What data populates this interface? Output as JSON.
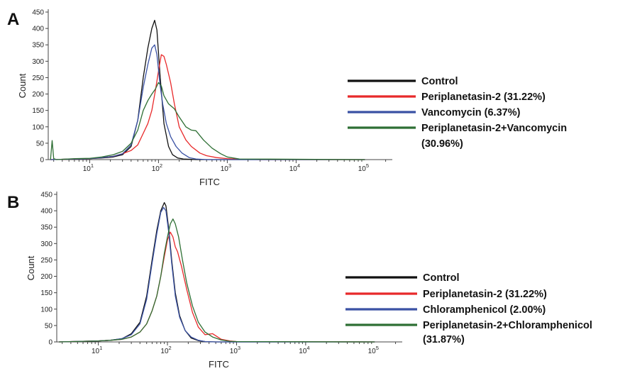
{
  "chart_data": [
    {
      "panel_label": "A",
      "type": "line",
      "xlabel": "FITC",
      "ylabel": "Count",
      "x_scale": "log",
      "xlim": [
        2.5,
        250000
      ],
      "ylim": [
        0,
        450
      ],
      "y_ticks": [
        0,
        50,
        100,
        150,
        200,
        250,
        300,
        350,
        400,
        450
      ],
      "x_ticks": [
        {
          "value": 10,
          "base": "10",
          "exp": "1"
        },
        {
          "value": 100,
          "base": "10",
          "exp": "2"
        },
        {
          "value": 1000,
          "base": "10",
          "exp": "3"
        },
        {
          "value": 10000,
          "base": "10",
          "exp": "4"
        },
        {
          "value": 100000,
          "base": "10",
          "exp": "5"
        }
      ],
      "series": [
        {
          "name": "Control",
          "color": "#111111",
          "x": [
            2.7,
            6,
            10,
            15,
            22,
            30,
            40,
            50,
            60,
            70,
            80,
            88,
            95,
            105,
            120,
            140,
            160,
            190,
            230,
            280,
            350,
            500,
            1000,
            3000,
            100000
          ],
          "y": [
            0,
            2,
            3,
            5,
            8,
            15,
            40,
            120,
            250,
            340,
            400,
            425,
            395,
            260,
            110,
            40,
            15,
            5,
            2,
            1,
            0,
            0,
            0,
            0,
            0
          ]
        },
        {
          "name": "Periplanetasin-2 (31.22%)",
          "color": "#e8292a",
          "x": [
            2.7,
            6,
            10,
            15,
            22,
            30,
            40,
            50,
            60,
            70,
            80,
            90,
            100,
            110,
            120,
            130,
            150,
            170,
            200,
            250,
            300,
            400,
            500,
            700,
            1000,
            1500,
            3000,
            100000
          ],
          "y": [
            0,
            2,
            3,
            6,
            10,
            18,
            28,
            45,
            80,
            110,
            150,
            210,
            270,
            320,
            315,
            290,
            235,
            170,
            100,
            60,
            40,
            20,
            12,
            6,
            3,
            1,
            0,
            0
          ]
        },
        {
          "name": "Vancomycin (6.37%)",
          "color": "#3a52a4",
          "x": [
            2.7,
            6,
            10,
            15,
            22,
            30,
            40,
            50,
            60,
            70,
            80,
            88,
            95,
            105,
            115,
            130,
            150,
            180,
            220,
            280,
            350,
            500,
            1000,
            100000
          ],
          "y": [
            0,
            2,
            3,
            6,
            10,
            18,
            45,
            120,
            220,
            290,
            340,
            350,
            320,
            230,
            170,
            110,
            70,
            40,
            20,
            6,
            2,
            0,
            0,
            0
          ]
        },
        {
          "name": "Periplanetasin-2+Vancomycin\n(30.96%)",
          "color": "#2e6f34",
          "x": [
            2.7,
            2.85,
            3.0,
            3.3,
            6,
            10,
            15,
            22,
            30,
            40,
            50,
            60,
            70,
            80,
            90,
            100,
            110,
            120,
            140,
            170,
            200,
            250,
            300,
            350,
            450,
            600,
            800,
            1000,
            1500,
            100000
          ],
          "y": [
            0,
            58,
            3,
            0,
            3,
            4,
            8,
            15,
            25,
            50,
            90,
            150,
            180,
            200,
            215,
            235,
            225,
            195,
            170,
            155,
            130,
            100,
            90,
            88,
            60,
            35,
            18,
            8,
            2,
            0
          ]
        }
      ],
      "legend": [
        {
          "label": "Control",
          "color": "#111111"
        },
        {
          "label": "Periplanetasin-2 (31.22%)",
          "color": "#e8292a"
        },
        {
          "label": "Vancomycin (6.37%)",
          "color": "#3a52a4"
        },
        {
          "label": "Periplanetasin-2+Vancomycin",
          "label2": "(30.96%)",
          "color": "#2e6f34"
        }
      ]
    },
    {
      "panel_label": "B",
      "type": "line",
      "xlabel": "FITC",
      "ylabel": "Count",
      "x_scale": "log",
      "xlim": [
        2.5,
        250000
      ],
      "ylim": [
        0,
        450
      ],
      "y_ticks": [
        0,
        50,
        100,
        150,
        200,
        250,
        300,
        350,
        400,
        450
      ],
      "x_ticks": [
        {
          "value": 10,
          "base": "10",
          "exp": "1"
        },
        {
          "value": 100,
          "base": "10",
          "exp": "2"
        },
        {
          "value": 1000,
          "base": "10",
          "exp": "3"
        },
        {
          "value": 10000,
          "base": "10",
          "exp": "4"
        },
        {
          "value": 100000,
          "base": "10",
          "exp": "5"
        }
      ],
      "series": [
        {
          "name": "Control",
          "color": "#111111",
          "x": [
            2.7,
            6,
            10,
            15,
            22,
            30,
            40,
            50,
            60,
            70,
            80,
            90,
            95,
            105,
            115,
            130,
            150,
            180,
            220,
            280,
            350,
            500,
            100000
          ],
          "y": [
            0,
            2,
            3,
            5,
            10,
            25,
            60,
            140,
            250,
            340,
            400,
            425,
            415,
            340,
            250,
            150,
            80,
            35,
            12,
            4,
            1,
            0,
            0
          ]
        },
        {
          "name": "Periplanetasin-2 (31.22%)",
          "color": "#e8292a",
          "x": [
            2.7,
            6,
            10,
            15,
            22,
            30,
            40,
            50,
            60,
            70,
            80,
            90,
            100,
            110,
            120,
            130,
            140,
            160,
            190,
            230,
            280,
            350,
            450,
            600,
            800,
            1000,
            100000
          ],
          "y": [
            0,
            2,
            3,
            5,
            8,
            15,
            30,
            55,
            95,
            140,
            200,
            260,
            310,
            335,
            320,
            290,
            275,
            230,
            160,
            90,
            45,
            22,
            25,
            8,
            3,
            1,
            0
          ]
        },
        {
          "name": "Chloramphenicol (2.00%)",
          "color": "#3a52a4",
          "x": [
            2.7,
            6,
            10,
            15,
            22,
            30,
            40,
            50,
            60,
            70,
            80,
            88,
            95,
            105,
            115,
            130,
            150,
            180,
            220,
            280,
            350,
            500,
            100000
          ],
          "y": [
            0,
            2,
            3,
            5,
            10,
            22,
            55,
            130,
            240,
            330,
            395,
            410,
            400,
            330,
            240,
            140,
            75,
            35,
            15,
            5,
            1,
            0,
            0
          ]
        },
        {
          "name": "Periplanetasin-2+Chloramphenicol\n(31.87%)",
          "color": "#2e6f34",
          "x": [
            2.7,
            6,
            10,
            15,
            22,
            30,
            40,
            50,
            60,
            70,
            80,
            90,
            100,
            110,
            120,
            130,
            145,
            165,
            190,
            230,
            280,
            350,
            450,
            600,
            800,
            1000,
            100000
          ],
          "y": [
            0,
            2,
            3,
            5,
            8,
            15,
            30,
            55,
            95,
            140,
            200,
            270,
            320,
            360,
            375,
            360,
            320,
            250,
            180,
            110,
            60,
            30,
            15,
            6,
            2,
            1,
            0
          ]
        }
      ],
      "legend": [
        {
          "label": "Control",
          "color": "#111111"
        },
        {
          "label": "Periplanetasin-2 (31.22%)",
          "color": "#e8292a"
        },
        {
          "label": "Chloramphenicol (2.00%)",
          "color": "#3a52a4"
        },
        {
          "label": "Periplanetasin-2+Chloramphenicol",
          "label2": "(31.87%)",
          "color": "#2e6f34"
        }
      ]
    }
  ]
}
